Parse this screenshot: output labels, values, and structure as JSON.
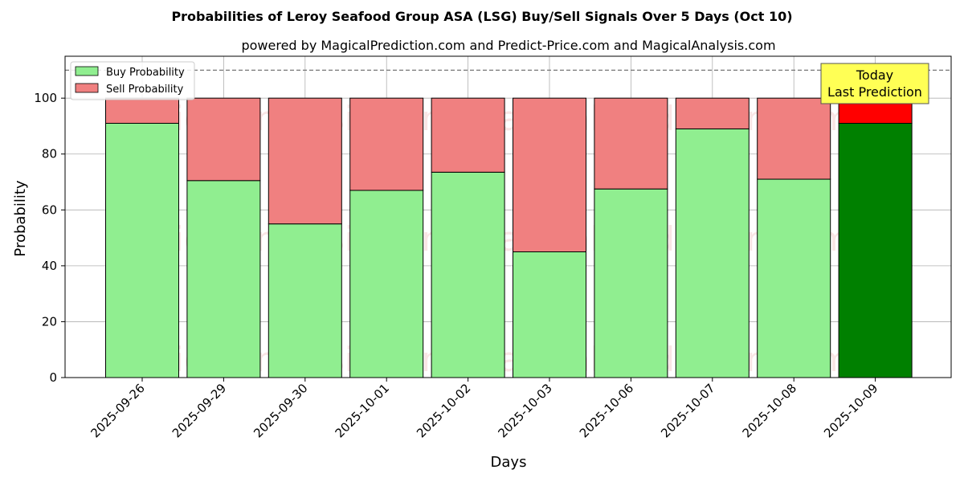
{
  "chart_data": {
    "type": "bar",
    "stacked": true,
    "title": "Probabilities of Leroy Seafood Group ASA (LSG) Buy/Sell Signals Over 5 Days (Oct 10)",
    "subtitle": "powered by MagicalPrediction.com and Predict-Price.com and MagicalAnalysis.com",
    "xlabel": "Days",
    "ylabel": "Probability",
    "ylim": [
      0,
      115
    ],
    "yticks": [
      0,
      20,
      40,
      60,
      80,
      100
    ],
    "grid": true,
    "legend_position": "top-left",
    "reference_line": 110,
    "categories": [
      "2025-09-26",
      "2025-09-29",
      "2025-09-30",
      "2025-10-01",
      "2025-10-02",
      "2025-10-03",
      "2025-10-06",
      "2025-10-07",
      "2025-10-08",
      "2025-10-09"
    ],
    "series": [
      {
        "name": "Buy Probability",
        "values": [
          91,
          70.5,
          55,
          67,
          73.5,
          45,
          67.5,
          89,
          71,
          91
        ]
      },
      {
        "name": "Sell Probability",
        "values": [
          9,
          29.5,
          45,
          33,
          26.5,
          55,
          32.5,
          11,
          29,
          9
        ]
      }
    ],
    "highlight_index": 9,
    "annotation": {
      "line1": "Today",
      "line2": "Last Prediction"
    },
    "watermarks": [
      "MagicalAnalysis.com",
      "MagicalPrediction.com"
    ]
  },
  "colors": {
    "buy": "#90ee90",
    "sell": "#f08080",
    "buy_highlight": "#008000",
    "sell_highlight": "#ff0000",
    "annotation_bg": "#ffff55",
    "grid": "#b0b0b0"
  }
}
